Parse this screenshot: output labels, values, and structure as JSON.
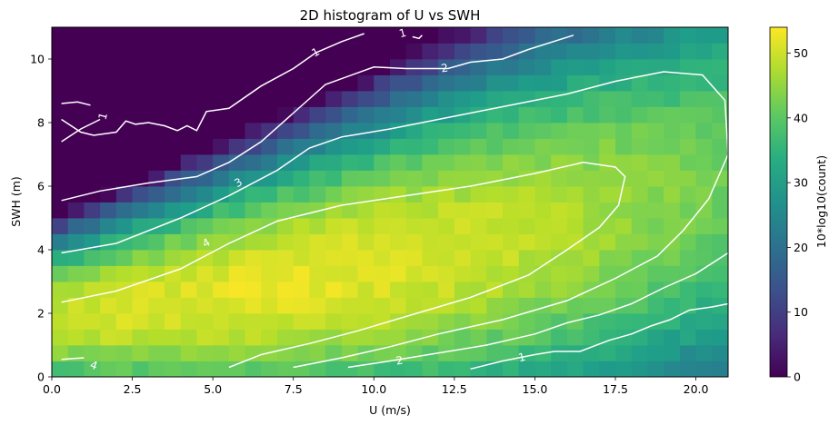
{
  "chart_data": {
    "type": "heatmap",
    "title": "2D histogram of U vs SWH",
    "xlabel": "U (m/s)",
    "ylabel": "SWH (m)",
    "xlim": [
      0,
      21
    ],
    "ylim": [
      0,
      11
    ],
    "x_ticks": [
      "0.0",
      "2.5",
      "5.0",
      "7.5",
      "10.0",
      "12.5",
      "15.0",
      "17.5",
      "20.0"
    ],
    "y_ticks": [
      "0",
      "2",
      "4",
      "6",
      "8",
      "10"
    ],
    "colorbar": {
      "label": "10*log10(count)",
      "min": 0,
      "max": 54,
      "ticks": [
        "0",
        "10",
        "20",
        "30",
        "40",
        "50"
      ],
      "colormap": "viridis"
    },
    "contours": [
      {
        "level": 1,
        "labels": [
          "1",
          "1",
          "1",
          "1"
        ]
      },
      {
        "level": 2,
        "labels": [
          "2",
          "2"
        ]
      },
      {
        "level": 3,
        "labels": [
          "3"
        ]
      },
      {
        "level": 4,
        "labels": [
          "4",
          "4"
        ]
      }
    ]
  }
}
